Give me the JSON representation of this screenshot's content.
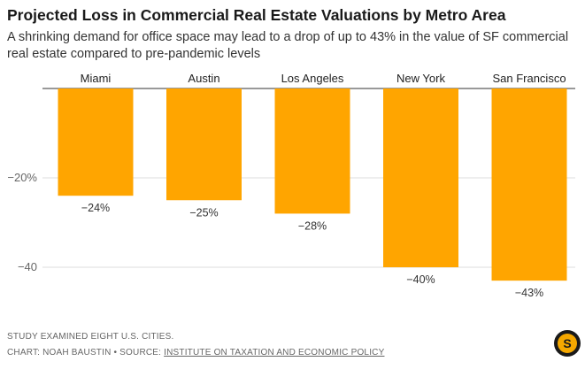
{
  "title": "Projected Loss in Commercial Real Estate Valuations by Metro Area",
  "subtitle": "A shrinking demand for office space may lead to a drop of up to 43% in the value of SF commercial real estate compared to pre-pandemic levels",
  "footer": {
    "note": "Study examined eight U.S. cities.",
    "credit_prefix": "Chart: Noah Baustin • Source: ",
    "source_name": "Institute on Taxation and Economic Policy"
  },
  "logo": {
    "letter": "S",
    "color": "#f5a800"
  },
  "colors": {
    "bar": "#FFA500",
    "axis_text": "#666666",
    "grid": "#dddddd"
  },
  "chart_data": {
    "type": "bar",
    "orientation": "vertical-downward",
    "categories": [
      "Miami",
      "Austin",
      "Los Angeles",
      "New York",
      "San Francisco"
    ],
    "values": [
      -24,
      -25,
      -28,
      -40,
      -43
    ],
    "value_labels": [
      "−24%",
      "−25%",
      "−28%",
      "−40%",
      "−43%"
    ],
    "ylim": [
      -45,
      0
    ],
    "yticks": [
      {
        "value": -20,
        "label": "−20%"
      },
      {
        "value": -40,
        "label": "−40"
      }
    ],
    "grid": true,
    "category_labels_position": "top"
  }
}
